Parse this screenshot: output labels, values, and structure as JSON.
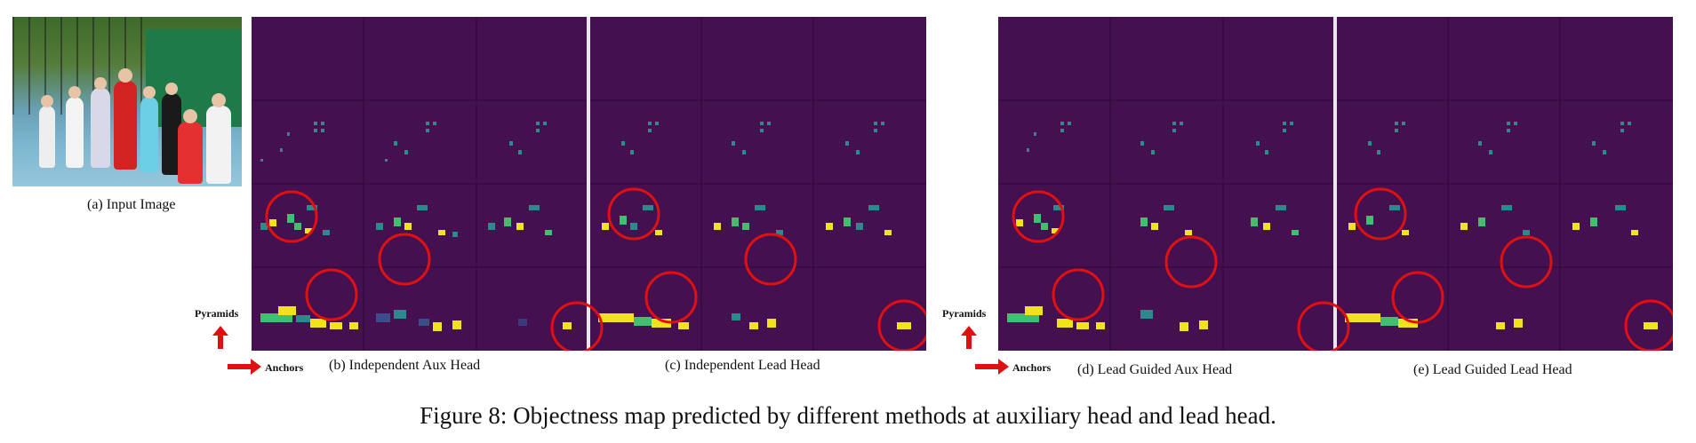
{
  "captions": {
    "a": "(a) Input Image",
    "b": "(b) Independent Aux Head",
    "c": "(c) Independent Lead Head",
    "d": "(d) Lead Guided Aux Head",
    "e": "(e) Lead Guided Lead Head"
  },
  "axes": {
    "pyramids": "Pyramids",
    "anchors": "Anchors"
  },
  "figure_caption": "Figure 8: Objectness map predicted by different methods at auxiliary head and lead head.",
  "colors": {
    "map_background": "#45104f",
    "annotation_circle": "#e01010",
    "activation_low": "#2a8a8c",
    "activation_mid": "#3fbf6f",
    "activation_high": "#f2e21b"
  }
}
